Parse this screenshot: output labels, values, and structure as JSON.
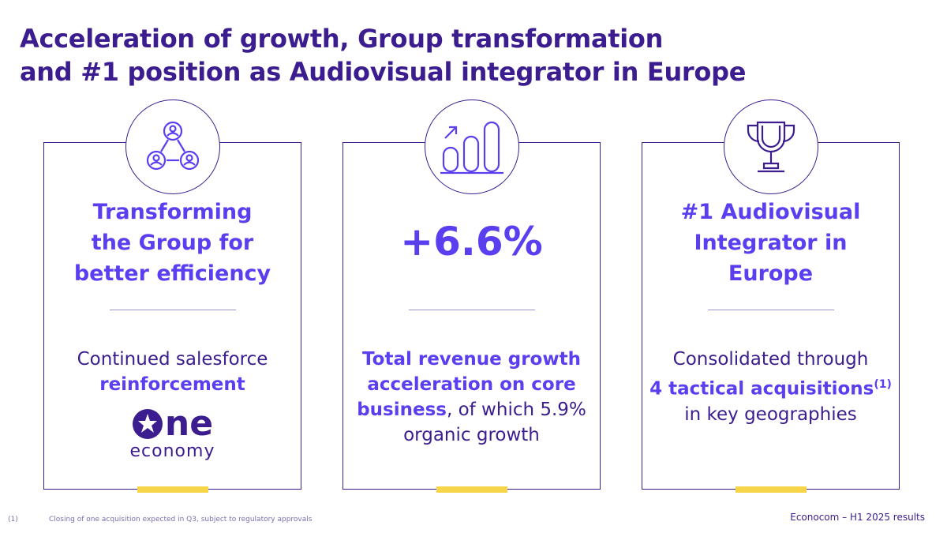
{
  "title": {
    "line1": "Acceleration of growth, Group transformation",
    "line2": "and #1 position as Audiovisual integrator in Europe"
  },
  "colors": {
    "primary": "#3b1d8f",
    "accent": "#5a3ff0",
    "highlight": "#f7d54a"
  },
  "cards": [
    {
      "icon": "people-network-icon",
      "heading": [
        "Transforming",
        "the Group for",
        "better efficiency"
      ],
      "body_plain": "Continued salesforce",
      "body_bold": "reinforcement",
      "logo": {
        "top_text": "ne",
        "bottom_text": "economy"
      }
    },
    {
      "icon": "bar-chart-growth-icon",
      "stat": "+6.6%",
      "body_bold": "Total revenue growth acceleration on core business",
      "body_plain": ", of which 5.9% organic growth"
    },
    {
      "icon": "trophy-icon",
      "heading": [
        "#1 Audiovisual",
        "Integrator in",
        "Europe"
      ],
      "body_plain_1": "Consolidated through",
      "body_bold": "4 tactical acquisitions",
      "body_sup": "(1)",
      "body_plain_2": "in key geographies"
    }
  ],
  "footnote": {
    "number": "(1)",
    "text": "Closing of one acquisition expected in Q3, subject to regulatory approvals"
  },
  "footer": "Econocom – H1 2025 results"
}
